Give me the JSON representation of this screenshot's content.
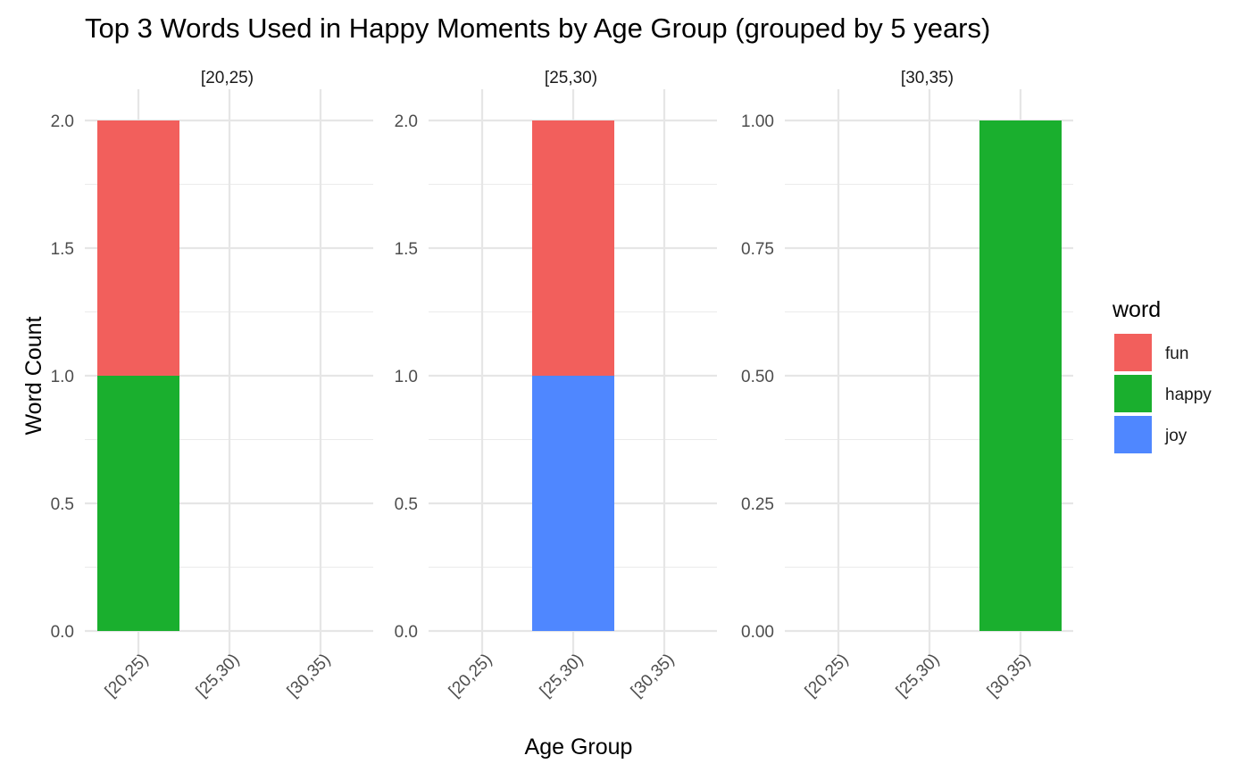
{
  "chart_data": {
    "type": "bar",
    "stacked": true,
    "title": "Top 3 Words Used in Happy Moments by Age Group (grouped by 5 years)",
    "xlabel": "Age Group",
    "ylabel": "Word Count",
    "categories": [
      "[20,25)",
      "[25,30)",
      "[30,35)"
    ],
    "legend": {
      "title": "word",
      "position": "right",
      "entries": [
        {
          "label": "fun",
          "color": "#F25F5C"
        },
        {
          "label": "happy",
          "color": "#1AAF2E"
        },
        {
          "label": "joy",
          "color": "#4F87FF"
        }
      ]
    },
    "grid": true,
    "panels": [
      {
        "strip": "[20,25)",
        "ylim": [
          0,
          2
        ],
        "yticks": [
          "0.0",
          "0.5",
          "1.0",
          "1.5",
          "2.0"
        ],
        "ytick_values": [
          0,
          0.5,
          1,
          1.5,
          2
        ],
        "bars": [
          {
            "category": "[20,25)",
            "segments": [
              {
                "word": "happy",
                "value": 1
              },
              {
                "word": "fun",
                "value": 1
              }
            ]
          }
        ]
      },
      {
        "strip": "[25,30)",
        "ylim": [
          0,
          2
        ],
        "yticks": [
          "0.0",
          "0.5",
          "1.0",
          "1.5",
          "2.0"
        ],
        "ytick_values": [
          0,
          0.5,
          1,
          1.5,
          2
        ],
        "bars": [
          {
            "category": "[25,30)",
            "segments": [
              {
                "word": "joy",
                "value": 1
              },
              {
                "word": "fun",
                "value": 1
              }
            ]
          }
        ]
      },
      {
        "strip": "[30,35)",
        "ylim": [
          0,
          1
        ],
        "yticks": [
          "0.00",
          "0.25",
          "0.50",
          "0.75",
          "1.00"
        ],
        "ytick_values": [
          0,
          0.25,
          0.5,
          0.75,
          1
        ],
        "bars": [
          {
            "category": "[30,35)",
            "segments": [
              {
                "word": "happy",
                "value": 1
              }
            ]
          }
        ]
      }
    ]
  }
}
